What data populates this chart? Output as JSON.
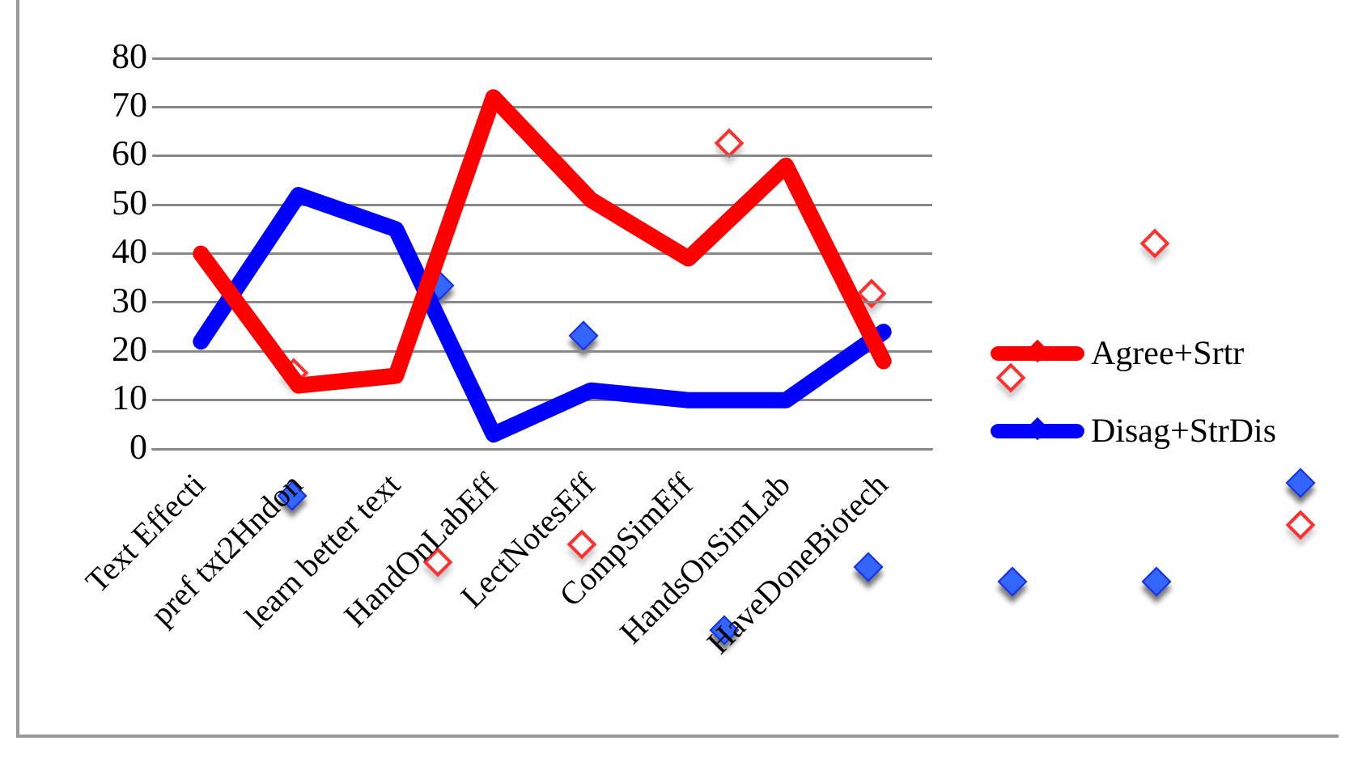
{
  "chart_data": {
    "type": "line",
    "categories": [
      "Text Effecti",
      "pref txt2Hndon",
      "learn better text",
      "HandOnLabEff",
      "LectNotesEff",
      "CompSimEff",
      "HandsOnSimLab",
      "HaveDoneBiotech"
    ],
    "series": [
      {
        "name": "Agree+Srtr",
        "color": "#ff0000",
        "values": [
          40,
          13,
          15,
          72,
          51,
          39,
          58,
          18
        ]
      },
      {
        "name": "Disag+StrDis",
        "color": "#0000ff",
        "values": [
          22,
          52,
          45,
          3,
          12,
          10,
          10,
          24
        ]
      }
    ],
    "ylim": [
      0,
      80
    ],
    "yticks": [
      0,
      10,
      20,
      30,
      40,
      50,
      60,
      70,
      80
    ],
    "grid": "y",
    "legend": "right"
  }
}
